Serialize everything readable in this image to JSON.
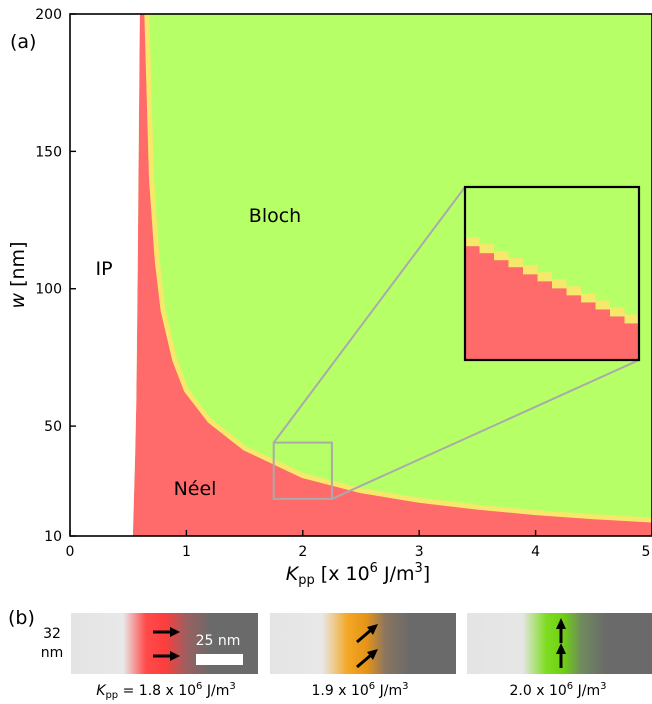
{
  "colors": {
    "bloch": "#b6ff66",
    "neel": "#ff6a6a",
    "boundary": "#f6e86a",
    "ip": "#ffffff",
    "zoom_box": "#aaaaaa",
    "inset_frame": "#000000",
    "strip_left": "#e4e4e4",
    "strip_right": "#6a6a6a",
    "scale_bar": "#ffffff",
    "arrow": "#000000"
  },
  "panel_a": {
    "label": "(a)",
    "region_labels": {
      "ip": "IP",
      "bloch": "Bloch",
      "neel": "Néel"
    },
    "ylabel_var": "w",
    "ylabel_unit": " [nm]",
    "xlabel_var": "K",
    "xlabel_sub": "pp",
    "xlabel_pre": " [x 10",
    "xlabel_exp": "6",
    "xlabel_mid": " J/m",
    "xlabel_exp2": "3",
    "xlabel_post": "]",
    "x_ticks": [
      "0",
      "1",
      "2",
      "3",
      "4",
      "5"
    ],
    "y_ticks": [
      "10",
      "50",
      "100",
      "150",
      "200"
    ]
  },
  "chart_data": {
    "type": "heatmap",
    "title": "",
    "xlabel": "K_pp [x 10^6 J/m^3]",
    "ylabel": "w [nm]",
    "xlim": [
      0,
      5
    ],
    "ylim": [
      10,
      200
    ],
    "regions": [
      "IP",
      "Néel",
      "Bloch"
    ],
    "ip_neel_boundary": {
      "x": [
        0.6,
        0.58,
        0.57,
        0.56,
        0.55,
        0.54
      ],
      "y": [
        200,
        100,
        60,
        40,
        25,
        10
      ]
    },
    "neel_bloch_boundary": {
      "x": [
        0.66,
        0.68,
        0.7,
        0.75,
        0.8,
        0.9,
        1.0,
        1.2,
        1.5,
        2.0,
        2.5,
        3.0,
        3.5,
        4.0,
        4.5,
        5.0
      ],
      "y": [
        200,
        170,
        140,
        110,
        92,
        74,
        63,
        52,
        42,
        32,
        26.5,
        23,
        20.5,
        18.5,
        17,
        15.8
      ]
    },
    "zoom_box": {
      "x": [
        1.75,
        2.25
      ],
      "y": [
        23.5,
        44
      ]
    },
    "inset": {
      "neel_bloch_boundary": {
        "x": [
          1.75,
          1.85,
          1.95,
          2.05,
          2.15,
          2.25
        ],
        "y": [
          37,
          35,
          33,
          31,
          29,
          27
        ]
      }
    }
  },
  "panel_b": {
    "label": "(b)",
    "width_value": "32",
    "width_unit": "nm",
    "scale_bar_label": "25 nm",
    "panels": [
      {
        "k_value": "1.8",
        "wall_color": "#ff4b4b",
        "arrow_angle_deg": 0
      },
      {
        "k_value": "1.9",
        "wall_color": "#f5a623",
        "arrow_angle_deg": -40
      },
      {
        "k_value": "2.0",
        "wall_color": "#7ddc1f",
        "arrow_angle_deg": -90
      }
    ],
    "caption_first_var": "K",
    "caption_first_sub": "pp",
    "caption_eq": " = ",
    "caption_pre": " x 10",
    "caption_exp": "6",
    "caption_unit": " J/m",
    "caption_exp2": "3"
  }
}
